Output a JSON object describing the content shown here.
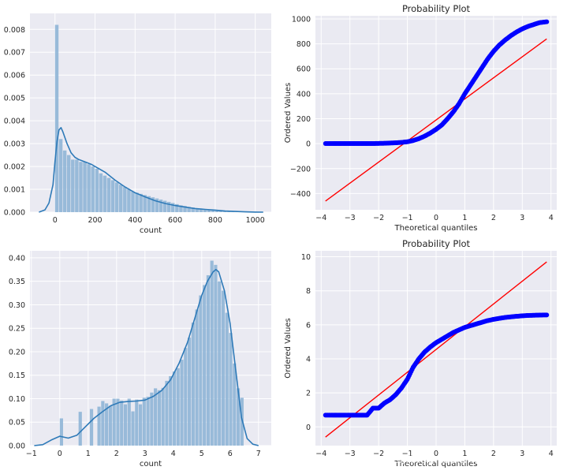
{
  "colors": {
    "panel_bg": "#EAEAF2",
    "grid": "#FFFFFF",
    "hist_fill": "#8FB5D6",
    "kde_line": "#2E7AB8",
    "qq_points": "#0000FF",
    "qq_line": "#FF0000"
  },
  "watermark": "https://blog.csdn.net/qq_14959801",
  "chart_data": [
    {
      "type": "bar",
      "subtype": "histogram-with-kde",
      "title": "",
      "xlabel": "count",
      "ylabel": "",
      "xlim": [
        -125,
        1080
      ],
      "ylim": [
        0,
        0.0087
      ],
      "xticks": [
        0,
        200,
        400,
        600,
        800,
        1000
      ],
      "yticks": [
        0.0,
        0.001,
        0.002,
        0.003,
        0.004,
        0.005,
        0.006,
        0.007,
        0.008
      ],
      "ytick_labels": [
        "0.000",
        "0.001",
        "0.002",
        "0.003",
        "0.004",
        "0.005",
        "0.006",
        "0.007",
        "0.008"
      ],
      "grid": true,
      "bins": {
        "start": 0,
        "width": 20
      },
      "values": [
        0.0082,
        0.0032,
        0.0027,
        0.0025,
        0.0023,
        0.0023,
        0.0022,
        0.0022,
        0.0021,
        0.002,
        0.0019,
        0.0017,
        0.0016,
        0.0015,
        0.0014,
        0.0013,
        0.0012,
        0.0011,
        0.001,
        0.0009,
        0.00085,
        0.0008,
        0.00075,
        0.0007,
        0.00065,
        0.0006,
        0.00055,
        0.0005,
        0.00045,
        0.0004,
        0.00035,
        0.0003,
        0.00027,
        0.00023,
        0.0002,
        0.00017,
        0.00015,
        0.00012,
        0.0001,
        8e-05,
        6e-05,
        5e-05,
        4e-05,
        3e-05,
        2e-05,
        2e-05,
        1e-05,
        1e-05,
        1e-05
      ],
      "kde": {
        "x": [
          -80,
          -50,
          -30,
          -10,
          0,
          10,
          20,
          30,
          40,
          60,
          80,
          100,
          120,
          150,
          180,
          200,
          220,
          250,
          300,
          350,
          400,
          450,
          500,
          550,
          600,
          650,
          700,
          750,
          800,
          850,
          900,
          950,
          1000,
          1040
        ],
        "y": [
          0,
          0.0001,
          0.0004,
          0.0012,
          0.0022,
          0.0031,
          0.0036,
          0.0037,
          0.0035,
          0.003,
          0.0026,
          0.0024,
          0.0023,
          0.0022,
          0.0021,
          0.002,
          0.0019,
          0.00175,
          0.0014,
          0.0011,
          0.00085,
          0.00067,
          0.0005,
          0.00038,
          0.00029,
          0.00022,
          0.00016,
          0.00012,
          9e-05,
          5e-05,
          3e-05,
          1.5e-05,
          5e-06,
          0
        ]
      }
    },
    {
      "type": "scatter",
      "subtype": "probability-plot",
      "title": "Probability Plot",
      "xlabel": "Theoretical quantiles",
      "ylabel": "Ordered Values",
      "xlim": [
        -4.2,
        4.2
      ],
      "ylim": [
        -530,
        1025
      ],
      "xticks": [
        -4,
        -3,
        -2,
        -1,
        0,
        1,
        2,
        3,
        4
      ],
      "yticks": [
        -400,
        -200,
        0,
        200,
        400,
        600,
        800,
        1000
      ],
      "grid": true,
      "points": {
        "x": [
          -3.85,
          -3.6,
          -3.4,
          -3.2,
          -3.0,
          -2.8,
          -2.6,
          -2.4,
          -2.2,
          -2.0,
          -1.8,
          -1.6,
          -1.4,
          -1.2,
          -1.0,
          -0.8,
          -0.6,
          -0.4,
          -0.2,
          0.0,
          0.2,
          0.4,
          0.6,
          0.8,
          1.0,
          1.2,
          1.4,
          1.6,
          1.8,
          2.0,
          2.2,
          2.4,
          2.6,
          2.8,
          3.0,
          3.2,
          3.4,
          3.6,
          3.85
        ],
        "y": [
          1,
          1,
          1,
          1,
          1,
          1,
          1,
          1,
          1,
          2,
          3,
          5,
          7,
          10,
          15,
          25,
          40,
          60,
          85,
          115,
          150,
          200,
          255,
          320,
          400,
          470,
          540,
          610,
          680,
          740,
          790,
          830,
          865,
          895,
          920,
          940,
          955,
          970,
          977
        ]
      },
      "fit_line": {
        "x": [
          -3.85,
          3.85
        ],
        "y": [
          -460,
          840
        ]
      }
    },
    {
      "type": "bar",
      "subtype": "histogram-with-kde",
      "title": "",
      "xlabel": "count",
      "ylabel": "",
      "xlim": [
        -1.05,
        7.45
      ],
      "ylim": [
        0,
        0.415
      ],
      "xticks": [
        -1,
        0,
        1,
        2,
        3,
        4,
        5,
        6,
        7
      ],
      "yticks": [
        0.0,
        0.05,
        0.1,
        0.15,
        0.2,
        0.25,
        0.3,
        0.35,
        0.4
      ],
      "ytick_labels": [
        "0.00",
        "0.05",
        "0.10",
        "0.15",
        "0.20",
        "0.25",
        "0.30",
        "0.35",
        "0.40"
      ],
      "grid": true,
      "bins": {
        "start": 0,
        "width": 0.1325
      },
      "values": [
        0.058,
        0,
        0,
        0,
        0,
        0.072,
        0,
        0,
        0.078,
        0,
        0.083,
        0.095,
        0.09,
        0.085,
        0.1,
        0.1,
        0.096,
        0.088,
        0.1,
        0.073,
        0.098,
        0.088,
        0.102,
        0.104,
        0.113,
        0.122,
        0.118,
        0.123,
        0.138,
        0.148,
        0.158,
        0.165,
        0.183,
        0.208,
        0.23,
        0.262,
        0.29,
        0.32,
        0.342,
        0.363,
        0.394,
        0.385,
        0.35,
        0.33,
        0.283,
        0.24,
        0.175,
        0.122,
        0.102
      ],
      "kde": {
        "x": [
          -0.9,
          -0.6,
          -0.3,
          0,
          0.3,
          0.6,
          0.9,
          1.2,
          1.5,
          1.8,
          2.1,
          2.4,
          2.7,
          3.0,
          3.3,
          3.6,
          3.9,
          4.2,
          4.5,
          4.8,
          5.0,
          5.2,
          5.4,
          5.5,
          5.6,
          5.8,
          6.0,
          6.2,
          6.4,
          6.6,
          6.8,
          7.0
        ],
        "y": [
          0,
          0.002,
          0.012,
          0.02,
          0.016,
          0.022,
          0.04,
          0.058,
          0.072,
          0.085,
          0.092,
          0.094,
          0.095,
          0.097,
          0.105,
          0.118,
          0.14,
          0.175,
          0.22,
          0.28,
          0.32,
          0.35,
          0.37,
          0.375,
          0.37,
          0.33,
          0.26,
          0.16,
          0.06,
          0.015,
          0.003,
          0
        ]
      }
    },
    {
      "type": "scatter",
      "subtype": "probability-plot",
      "title": "Probability Plot",
      "xlabel": "Theoretical quantiles",
      "ylabel": "Ordered Values",
      "xlim": [
        -4.2,
        4.2
      ],
      "ylim": [
        -1.1,
        10.35
      ],
      "xticks": [
        -4,
        -3,
        -2,
        -1,
        0,
        1,
        2,
        3,
        4
      ],
      "yticks": [
        0,
        2,
        4,
        6,
        8,
        10
      ],
      "grid": true,
      "points": {
        "x": [
          -3.85,
          -3.6,
          -3.4,
          -3.2,
          -3.0,
          -2.8,
          -2.6,
          -2.4,
          -2.2,
          -2.0,
          -1.8,
          -1.6,
          -1.4,
          -1.2,
          -1.0,
          -0.8,
          -0.6,
          -0.4,
          -0.2,
          0.0,
          0.2,
          0.4,
          0.6,
          0.8,
          1.0,
          1.2,
          1.4,
          1.6,
          1.8,
          2.0,
          2.2,
          2.4,
          2.6,
          2.8,
          3.0,
          3.2,
          3.4,
          3.6,
          3.85
        ],
        "y": [
          0.69,
          0.69,
          0.69,
          0.69,
          0.69,
          0.69,
          0.69,
          0.69,
          1.1,
          1.1,
          1.4,
          1.6,
          1.9,
          2.3,
          2.8,
          3.5,
          4.0,
          4.4,
          4.7,
          4.95,
          5.15,
          5.35,
          5.55,
          5.7,
          5.85,
          5.95,
          6.05,
          6.15,
          6.25,
          6.32,
          6.38,
          6.43,
          6.47,
          6.5,
          6.53,
          6.55,
          6.56,
          6.57,
          6.58
        ]
      },
      "fit_line": {
        "x": [
          -3.85,
          3.85
        ],
        "y": [
          -0.6,
          9.7
        ]
      }
    }
  ]
}
